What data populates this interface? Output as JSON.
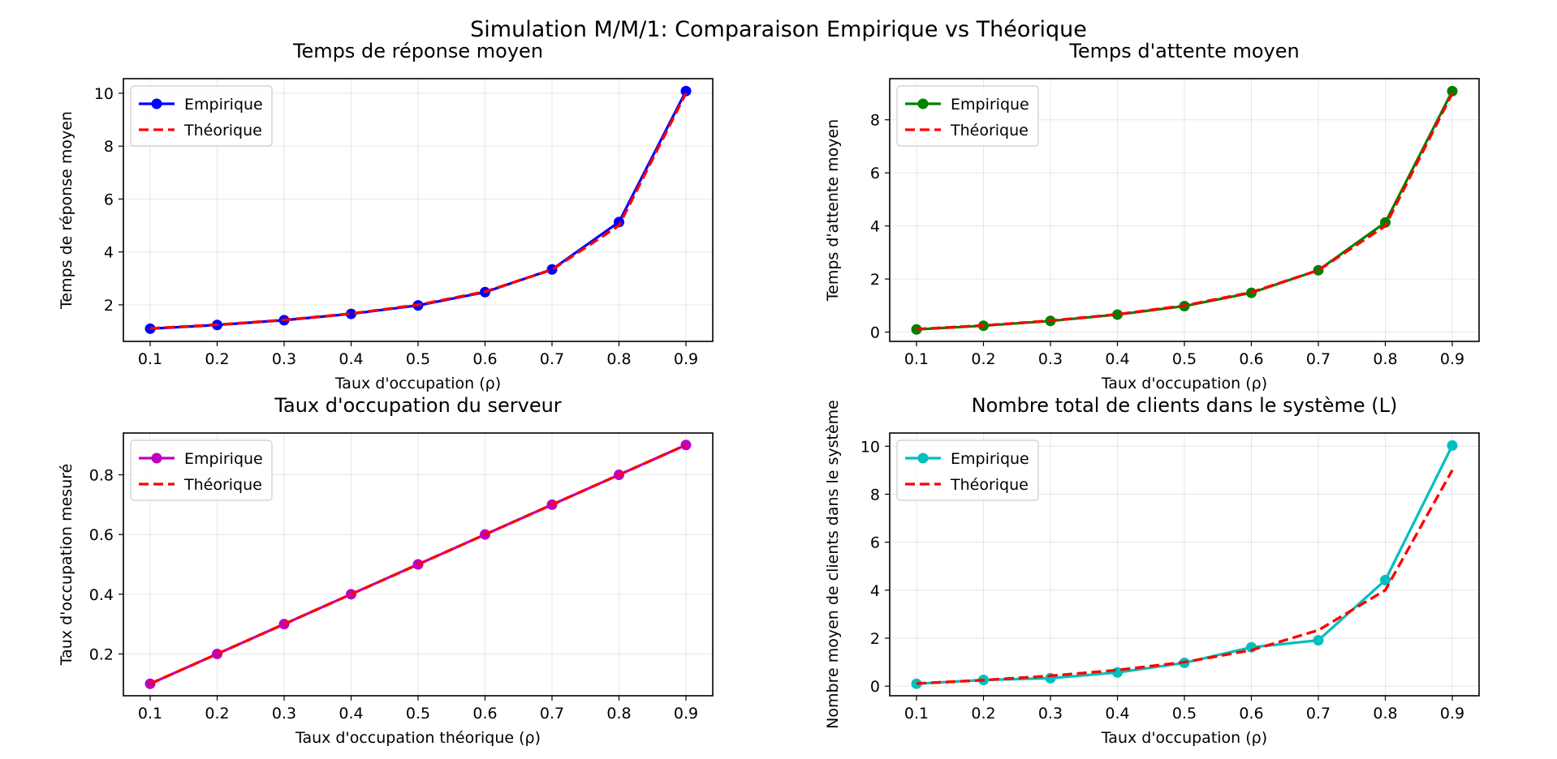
{
  "figure_title": "Simulation M/M/1: Comparaison Empirique vs Théorique",
  "chart_data": [
    {
      "type": "line",
      "title": "Temps de réponse moyen",
      "xlabel": "Taux d'occupation (ρ)",
      "ylabel": "Temps de réponse moyen",
      "x": [
        0.1,
        0.2,
        0.3,
        0.4,
        0.5,
        0.6,
        0.7,
        0.8,
        0.9
      ],
      "xlim": [
        0.06,
        0.94
      ],
      "ylim": [
        0.62,
        10.55
      ],
      "xticks": [
        "0.1",
        "0.2",
        "0.3",
        "0.4",
        "0.5",
        "0.6",
        "0.7",
        "0.8",
        "0.9"
      ],
      "yticks": [
        2,
        4,
        6,
        8,
        10
      ],
      "grid": true,
      "legend_position": "upper-left",
      "series": [
        {
          "name": "Empirique",
          "color": "#0000ff",
          "style": "solid-markers",
          "values": [
            1.1,
            1.24,
            1.42,
            1.66,
            1.98,
            2.48,
            3.34,
            5.13,
            10.08
          ]
        },
        {
          "name": "Théorique",
          "color": "#ff0000",
          "style": "dashed",
          "values": [
            1.11,
            1.25,
            1.43,
            1.67,
            2.0,
            2.5,
            3.33,
            5.0,
            10.0
          ]
        }
      ]
    },
    {
      "type": "line",
      "title": "Temps d'attente moyen",
      "xlabel": "Taux d'occupation (ρ)",
      "ylabel": "Temps d'attente moyen",
      "x": [
        0.1,
        0.2,
        0.3,
        0.4,
        0.5,
        0.6,
        0.7,
        0.8,
        0.9
      ],
      "xlim": [
        0.06,
        0.94
      ],
      "ylim": [
        -0.35,
        9.55
      ],
      "xticks": [
        "0.1",
        "0.2",
        "0.3",
        "0.4",
        "0.5",
        "0.6",
        "0.7",
        "0.8",
        "0.9"
      ],
      "yticks": [
        0,
        2,
        4,
        6,
        8
      ],
      "grid": true,
      "legend_position": "upper-left",
      "series": [
        {
          "name": "Empirique",
          "color": "#008000",
          "style": "solid-markers",
          "values": [
            0.1,
            0.24,
            0.42,
            0.66,
            0.98,
            1.48,
            2.33,
            4.13,
            9.08
          ]
        },
        {
          "name": "Théorique",
          "color": "#ff0000",
          "style": "dashed",
          "values": [
            0.11,
            0.25,
            0.43,
            0.67,
            1.0,
            1.5,
            2.33,
            4.0,
            9.0
          ]
        }
      ]
    },
    {
      "type": "line",
      "title": "Taux d'occupation du serveur",
      "xlabel": "Taux d'occupation théorique (ρ)",
      "ylabel": "Taux d'occupation mesuré",
      "x": [
        0.1,
        0.2,
        0.3,
        0.4,
        0.5,
        0.6,
        0.7,
        0.8,
        0.9
      ],
      "xlim": [
        0.06,
        0.94
      ],
      "ylim": [
        0.06,
        0.94
      ],
      "xticks": [
        "0.1",
        "0.2",
        "0.3",
        "0.4",
        "0.5",
        "0.6",
        "0.7",
        "0.8",
        "0.9"
      ],
      "yticks": [
        0.2,
        0.4,
        0.6,
        0.8
      ],
      "grid": true,
      "legend_position": "upper-left",
      "series": [
        {
          "name": "Empirique",
          "color": "#bf00bf",
          "style": "solid-markers",
          "values": [
            0.1,
            0.2,
            0.3,
            0.4,
            0.5,
            0.6,
            0.7,
            0.8,
            0.9
          ]
        },
        {
          "name": "Théorique",
          "color": "#ff0000",
          "style": "dashed",
          "values": [
            0.1,
            0.2,
            0.3,
            0.4,
            0.5,
            0.6,
            0.7,
            0.8,
            0.9
          ]
        }
      ]
    },
    {
      "type": "line",
      "title": "Nombre total de clients dans le système (L)",
      "xlabel": "Taux d'occupation (ρ)",
      "ylabel": "Nombre moyen de clients dans le système",
      "x": [
        0.1,
        0.2,
        0.3,
        0.4,
        0.5,
        0.6,
        0.7,
        0.8,
        0.9
      ],
      "xlim": [
        0.06,
        0.94
      ],
      "ylim": [
        -0.4,
        10.55
      ],
      "xticks": [
        "0.1",
        "0.2",
        "0.3",
        "0.4",
        "0.5",
        "0.6",
        "0.7",
        "0.8",
        "0.9"
      ],
      "yticks": [
        0,
        2,
        4,
        6,
        8,
        10
      ],
      "grid": true,
      "legend_position": "upper-left",
      "series": [
        {
          "name": "Empirique",
          "color": "#00bfbf",
          "style": "solid-markers",
          "values": [
            0.1,
            0.26,
            0.33,
            0.57,
            0.97,
            1.62,
            1.91,
            4.42,
            10.03
          ]
        },
        {
          "name": "Théorique",
          "color": "#ff0000",
          "style": "dashed",
          "values": [
            0.11,
            0.25,
            0.43,
            0.67,
            1.0,
            1.5,
            2.33,
            4.0,
            9.0
          ]
        }
      ]
    }
  ]
}
